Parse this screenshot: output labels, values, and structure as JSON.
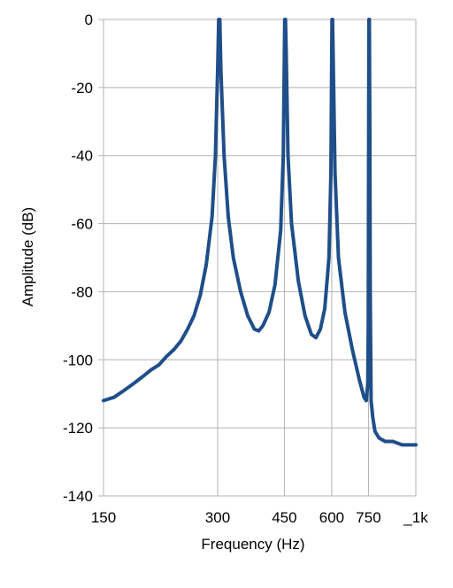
{
  "chart_data": {
    "type": "line",
    "xlabel": "Frequency (Hz)",
    "ylabel": "Amplitude (dB)",
    "x_scale": "log",
    "xlim": [
      150,
      1000
    ],
    "ylim": [
      -140,
      0
    ],
    "x_ticks": [
      {
        "value": 150,
        "label": "150"
      },
      {
        "value": 300,
        "label": "300"
      },
      {
        "value": 450,
        "label": "450"
      },
      {
        "value": 600,
        "label": "600"
      },
      {
        "value": 750,
        "label": "750"
      },
      {
        "value": 1000,
        "label": "_1k"
      }
    ],
    "y_ticks": [
      {
        "value": 0,
        "label": "0"
      },
      {
        "value": -20,
        "label": "-20"
      },
      {
        "value": -40,
        "label": "-40"
      },
      {
        "value": -60,
        "label": "-60"
      },
      {
        "value": -80,
        "label": "-80"
      },
      {
        "value": -100,
        "label": "-100"
      },
      {
        "value": -120,
        "label": "-120"
      },
      {
        "value": -140,
        "label": "-140"
      }
    ],
    "grid": true,
    "series": [
      {
        "color": "#1f4e89",
        "points": [
          [
            150,
            -112
          ],
          [
            160,
            -111
          ],
          [
            170,
            -109
          ],
          [
            180,
            -107
          ],
          [
            190,
            -105
          ],
          [
            200,
            -103
          ],
          [
            210,
            -101.5
          ],
          [
            220,
            -99
          ],
          [
            230,
            -97
          ],
          [
            240,
            -94.5
          ],
          [
            250,
            -91
          ],
          [
            260,
            -87
          ],
          [
            270,
            -81
          ],
          [
            280,
            -72
          ],
          [
            290,
            -58
          ],
          [
            296,
            -40
          ],
          [
            300,
            -15
          ],
          [
            302,
            0
          ],
          [
            304,
            0
          ],
          [
            306,
            -15
          ],
          [
            312,
            -40
          ],
          [
            320,
            -58
          ],
          [
            330,
            -70
          ],
          [
            345,
            -80
          ],
          [
            360,
            -87
          ],
          [
            375,
            -91
          ],
          [
            385,
            -91.5
          ],
          [
            395,
            -90
          ],
          [
            410,
            -86
          ],
          [
            425,
            -78
          ],
          [
            440,
            -62
          ],
          [
            447,
            -40
          ],
          [
            450,
            -10
          ],
          [
            451,
            0
          ],
          [
            453,
            0
          ],
          [
            455,
            -10
          ],
          [
            460,
            -40
          ],
          [
            470,
            -60
          ],
          [
            490,
            -77
          ],
          [
            510,
            -87
          ],
          [
            530,
            -92.5
          ],
          [
            545,
            -93.5
          ],
          [
            560,
            -91
          ],
          [
            575,
            -85
          ],
          [
            590,
            -70
          ],
          [
            597,
            -45
          ],
          [
            600,
            -10
          ],
          [
            601,
            0
          ],
          [
            603,
            0
          ],
          [
            605,
            -10
          ],
          [
            612,
            -45
          ],
          [
            625,
            -70
          ],
          [
            650,
            -86
          ],
          [
            680,
            -97
          ],
          [
            710,
            -106
          ],
          [
            730,
            -111
          ],
          [
            740,
            -112
          ],
          [
            747,
            -107
          ],
          [
            749,
            -90
          ],
          [
            751,
            -30
          ],
          [
            752,
            0
          ],
          [
            754,
            0
          ],
          [
            756,
            -30
          ],
          [
            758,
            -80
          ],
          [
            762,
            -112
          ],
          [
            770,
            -117
          ],
          [
            780,
            -121
          ],
          [
            800,
            -123
          ],
          [
            830,
            -124
          ],
          [
            870,
            -124
          ],
          [
            920,
            -125
          ],
          [
            960,
            -125
          ],
          [
            1000,
            -125
          ]
        ]
      }
    ]
  }
}
